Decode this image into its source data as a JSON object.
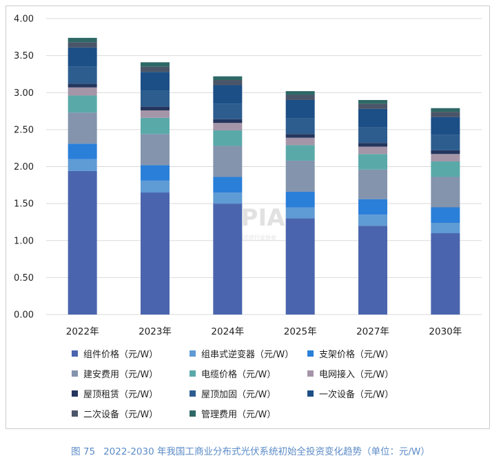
{
  "chart_data": {
    "type": "bar",
    "stacked": true,
    "categories": [
      "2022年",
      "2023年",
      "2024年",
      "2025年",
      "2027年",
      "2030年"
    ],
    "ylim": [
      0,
      4.0
    ],
    "yticks": [
      "0.00",
      "0.50",
      "1.00",
      "1.50",
      "2.00",
      "2.50",
      "3.00",
      "3.50",
      "4.00"
    ],
    "grid": true,
    "legend_position": "bottom",
    "series": [
      {
        "name": "组件价格（元/W）",
        "color": "#4a65ae",
        "values": [
          1.94,
          1.65,
          1.5,
          1.3,
          1.2,
          1.1
        ]
      },
      {
        "name": "组串式逆变器（元/W）",
        "color": "#5f9bd4",
        "values": [
          0.16,
          0.16,
          0.15,
          0.15,
          0.15,
          0.14
        ]
      },
      {
        "name": "支架价格（元/W）",
        "color": "#2a7fd9",
        "values": [
          0.21,
          0.21,
          0.21,
          0.21,
          0.21,
          0.21
        ]
      },
      {
        "name": "建安费用（元/W）",
        "color": "#8494ad",
        "values": [
          0.42,
          0.42,
          0.42,
          0.42,
          0.4,
          0.41
        ]
      },
      {
        "name": "电缆价格（元/W）",
        "color": "#5aa9a9",
        "values": [
          0.23,
          0.22,
          0.21,
          0.21,
          0.21,
          0.21
        ]
      },
      {
        "name": "电网接入（元/W）",
        "color": "#a595a8",
        "values": [
          0.11,
          0.1,
          0.1,
          0.1,
          0.1,
          0.1
        ]
      },
      {
        "name": "屋顶租赁（元/W）",
        "color": "#24365e",
        "values": [
          0.05,
          0.05,
          0.05,
          0.05,
          0.05,
          0.05
        ]
      },
      {
        "name": "屋顶加固（元/W）",
        "color": "#2d5d8f",
        "values": [
          0.23,
          0.22,
          0.21,
          0.21,
          0.21,
          0.21
        ]
      },
      {
        "name": "一次设备（元/W）",
        "color": "#1c4f86",
        "values": [
          0.26,
          0.25,
          0.25,
          0.25,
          0.25,
          0.24
        ]
      },
      {
        "name": "二次设备（元/W）",
        "color": "#4a5568",
        "values": [
          0.07,
          0.07,
          0.07,
          0.07,
          0.07,
          0.07
        ]
      },
      {
        "name": "管理费用（元/W）",
        "color": "#2e6866",
        "values": [
          0.06,
          0.06,
          0.05,
          0.05,
          0.05,
          0.05
        ]
      }
    ]
  },
  "watermark": {
    "logo_text": "CPIA",
    "org_name": "中国光伏行业协会"
  },
  "caption": {
    "figure_no": "图 75",
    "text": "2022-2030 年我国工商业分布式光伏系统初始全投资变化趋势（单位：元/W）"
  }
}
